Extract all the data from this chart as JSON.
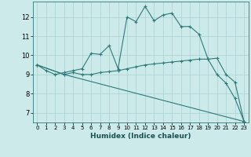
{
  "xlabel": "Humidex (Indice chaleur)",
  "bg_color": "#cceaea",
  "line_color": "#2d7a78",
  "grid_color": "#aad0d0",
  "xlim": [
    -0.5,
    23.5
  ],
  "ylim": [
    6.5,
    12.8
  ],
  "yticks": [
    7,
    8,
    9,
    10,
    11,
    12
  ],
  "xticks": [
    0,
    1,
    2,
    3,
    4,
    5,
    6,
    7,
    8,
    9,
    10,
    11,
    12,
    13,
    14,
    15,
    16,
    17,
    18,
    19,
    20,
    21,
    22,
    23
  ],
  "line1_x": [
    0,
    1,
    2,
    3,
    4,
    5,
    6,
    7,
    8,
    9,
    10,
    11,
    12,
    13,
    14,
    15,
    16,
    17,
    18,
    19,
    20,
    21,
    22,
    23
  ],
  "line1_y": [
    9.5,
    9.2,
    9.0,
    9.1,
    9.2,
    9.3,
    10.1,
    10.05,
    10.5,
    9.3,
    12.0,
    11.75,
    12.55,
    11.8,
    12.1,
    12.2,
    11.5,
    11.5,
    11.1,
    9.8,
    9.0,
    8.55,
    7.75,
    6.55
  ],
  "line2_x": [
    0,
    3,
    4,
    5,
    6,
    7,
    8,
    9,
    10,
    11,
    12,
    13,
    14,
    15,
    16,
    17,
    18,
    19,
    20,
    21,
    22,
    23
  ],
  "line2_y": [
    9.5,
    9.0,
    9.1,
    9.0,
    9.0,
    9.1,
    9.15,
    9.2,
    9.3,
    9.4,
    9.5,
    9.55,
    9.6,
    9.65,
    9.7,
    9.75,
    9.8,
    9.8,
    9.85,
    9.0,
    8.6,
    6.55
  ],
  "line3_x": [
    0,
    3,
    23
  ],
  "line3_y": [
    9.5,
    9.0,
    6.55
  ]
}
